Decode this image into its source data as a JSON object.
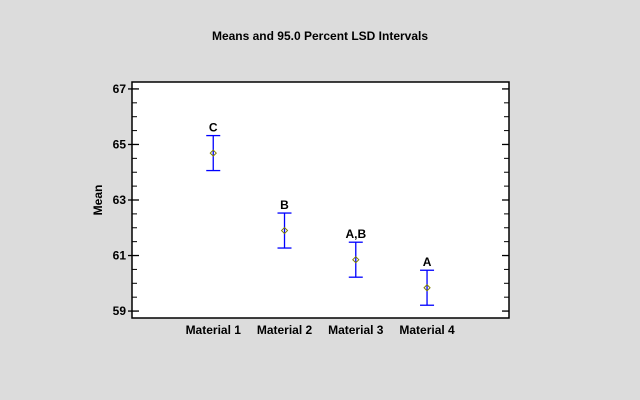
{
  "chart_data": {
    "type": "scatter",
    "subtype": "means-with-interval-bars",
    "title": "Means and 95.0 Percent LSD Intervals",
    "xlabel": "",
    "ylabel": "Mean",
    "categories": [
      "Material 1",
      "Material 2",
      "Material 3",
      "Material 4"
    ],
    "means": [
      64.69,
      61.9,
      60.85,
      59.84
    ],
    "lower": [
      64.06,
      61.27,
      60.22,
      59.21
    ],
    "upper": [
      65.32,
      62.53,
      61.48,
      60.47
    ],
    "group_labels": [
      "C",
      "B",
      "A,B",
      "A"
    ],
    "ylim": [
      58.75,
      67.25
    ],
    "xlim": [
      -0.14,
      5.15
    ],
    "yticks": [
      59,
      61,
      63,
      65,
      67
    ],
    "ytick_labels": [
      "59",
      "61",
      "63",
      "65",
      "67"
    ],
    "minor_tick_step": 0.5,
    "grid": false,
    "colors": {
      "interval": "#0000ff",
      "marker": "#808000",
      "background": "#dcdcdc",
      "plot_bg": "#ffffff"
    }
  }
}
